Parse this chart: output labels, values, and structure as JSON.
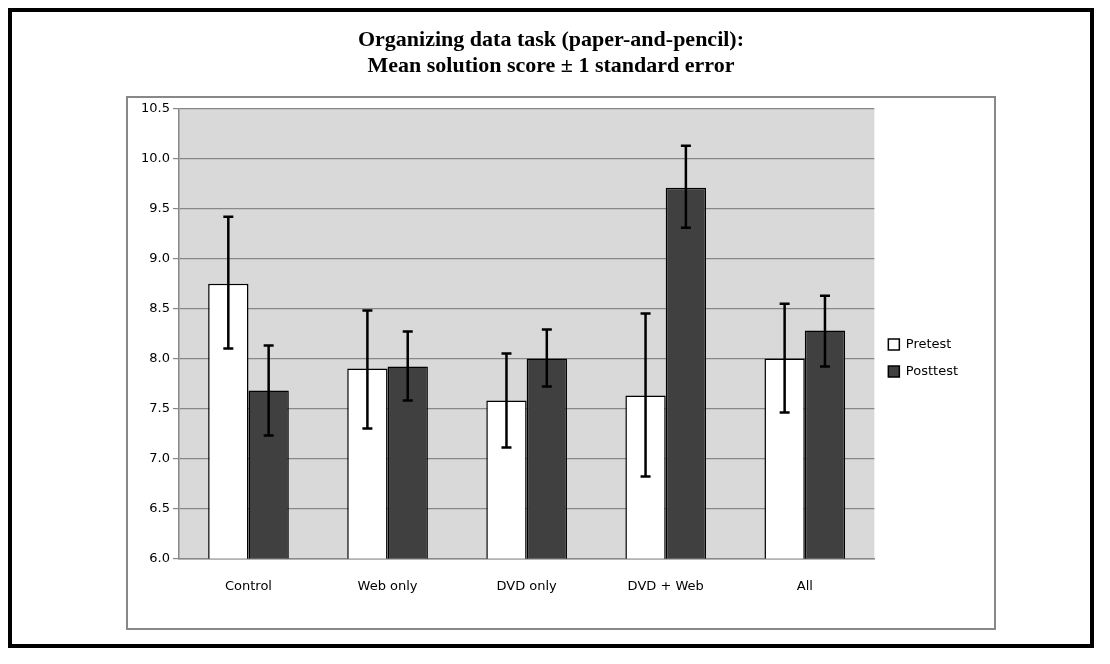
{
  "chart_data": {
    "type": "bar",
    "title": "Organizing data task (paper-and-pencil):\nMean solution score ± 1 standard error",
    "categories": [
      "Control",
      "Web only",
      "DVD only",
      "DVD + Web",
      "All"
    ],
    "series": [
      {
        "name": "Pretest",
        "color": "#ffffff",
        "values": [
          8.75,
          7.9,
          7.58,
          7.63,
          8.0
        ],
        "errors": [
          [
            8.1,
            9.42
          ],
          [
            7.3,
            8.48
          ],
          [
            7.11,
            8.05
          ],
          [
            6.82,
            8.45
          ],
          [
            7.46,
            8.55
          ]
        ]
      },
      {
        "name": "Posttest",
        "color": "#404040",
        "values": [
          7.68,
          7.92,
          8.0,
          9.71,
          8.28
        ],
        "errors": [
          [
            7.23,
            8.13
          ],
          [
            7.58,
            8.27
          ],
          [
            7.72,
            8.29
          ],
          [
            9.31,
            10.13
          ],
          [
            7.92,
            8.63
          ]
        ]
      }
    ],
    "ylim": [
      6,
      10.5
    ],
    "yticks": [
      {
        "value": 6,
        "label": "6.0"
      },
      {
        "value": 6.5,
        "label": "6.5"
      },
      {
        "value": 7,
        "label": "7.0"
      },
      {
        "value": 7.5,
        "label": "7.5"
      },
      {
        "value": 8,
        "label": "8.0"
      },
      {
        "value": 8.5,
        "label": "8.5"
      },
      {
        "value": 9,
        "label": "9.0"
      },
      {
        "value": 9.5,
        "label": "9.5"
      },
      {
        "value": 10,
        "label": "10.0"
      },
      {
        "value": 10.5,
        "label": "10.5"
      }
    ],
    "grid": "y",
    "legend": "right"
  }
}
